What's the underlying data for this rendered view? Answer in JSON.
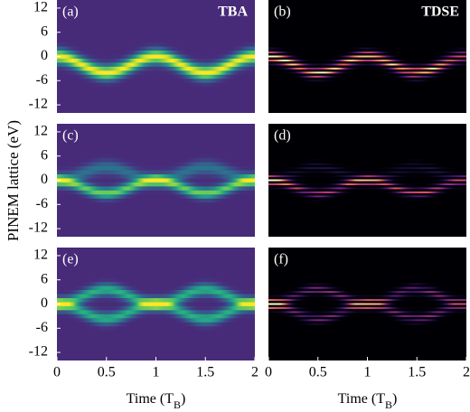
{
  "ylabel": "PINEM lattice (eV)",
  "chart_data": [
    {
      "type": "heatmap",
      "label": "(a)",
      "title": "TBA",
      "colormap": "viridis",
      "xlim": [
        0,
        2
      ],
      "ylim": [
        -14,
        14
      ],
      "yticks": [
        12,
        6,
        0,
        -6,
        -12
      ]
    },
    {
      "type": "heatmap",
      "label": "(b)",
      "title": "TDSE",
      "colormap": "magma",
      "xlim": [
        0,
        2
      ],
      "ylim": [
        -14,
        14
      ]
    },
    {
      "type": "heatmap",
      "label": "(c)",
      "colormap": "viridis",
      "xlim": [
        0,
        2
      ],
      "ylim": [
        -14,
        14
      ],
      "yticks": [
        12,
        6,
        0,
        -6,
        -12
      ]
    },
    {
      "type": "heatmap",
      "label": "(d)",
      "colormap": "magma",
      "xlim": [
        0,
        2
      ],
      "ylim": [
        -14,
        14
      ]
    },
    {
      "type": "heatmap",
      "label": "(e)",
      "colormap": "viridis",
      "xlim": [
        0,
        2
      ],
      "ylim": [
        -14,
        14
      ],
      "yticks": [
        12,
        6,
        0,
        -6,
        -12
      ],
      "xticks": [
        0,
        0.5,
        1,
        1.5,
        2
      ],
      "xlabel": [
        "Time (T",
        "B",
        ")"
      ]
    },
    {
      "type": "heatmap",
      "label": "(f)",
      "colormap": "magma",
      "xlim": [
        0,
        2
      ],
      "ylim": [
        -14,
        14
      ],
      "xticks": [
        0,
        0.5,
        1,
        1.5,
        2
      ],
      "xlabel": [
        "Time (T",
        "B",
        ")"
      ]
    }
  ]
}
